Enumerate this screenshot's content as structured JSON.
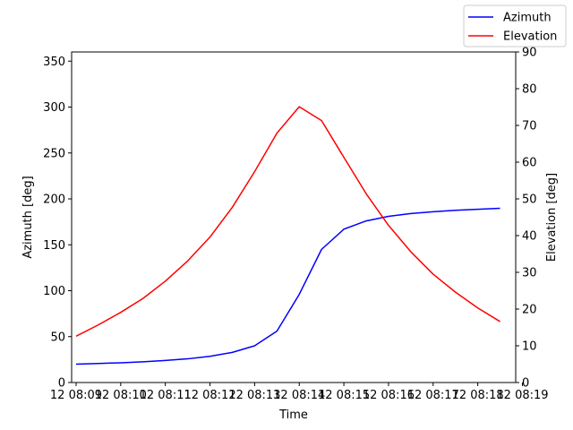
{
  "chart_data": {
    "type": "line",
    "xlabel": "Time",
    "ylabel_left": "Azimuth [deg]",
    "ylabel_right": "Elevation [deg]",
    "x_tick_labels": [
      "12 08:09",
      "12 08:10",
      "12 08:11",
      "12 08:12",
      "12 08:13",
      "12 08:14",
      "12 08:15",
      "12 08:16",
      "12 08:17",
      "12 08:18",
      "12 08:19"
    ],
    "x_range_minutes": [
      -0.1,
      9.85
    ],
    "x_minutes": [
      0,
      0.5,
      1,
      1.5,
      2,
      2.5,
      3,
      3.5,
      4,
      4.5,
      5,
      5.5,
      6,
      6.5,
      7,
      7.5,
      8,
      8.5,
      9,
      9.5
    ],
    "ylim_left": [
      0,
      360
    ],
    "yticks_left": [
      0,
      50,
      100,
      150,
      200,
      250,
      300,
      350
    ],
    "ylim_right": [
      0,
      90
    ],
    "yticks_right": [
      0,
      10,
      20,
      30,
      40,
      50,
      60,
      70,
      80,
      90
    ],
    "series": [
      {
        "name": "Azimuth",
        "axis": "left",
        "color": "#0000ff",
        "values": [
          20,
          20.7,
          21.5,
          22.6,
          24,
          25.8,
          28.5,
          32.8,
          40,
          56,
          96,
          145,
          167,
          176,
          181,
          184,
          186,
          187.5,
          188.7,
          189.8
        ]
      },
      {
        "name": "Elevation",
        "axis": "right",
        "color": "#ff0000",
        "values": [
          12.6,
          15.7,
          19.1,
          22.9,
          27.6,
          33.1,
          39.6,
          47.7,
          57.4,
          67.9,
          75.1,
          71.3,
          61.3,
          51.4,
          42.8,
          35.6,
          29.5,
          24.6,
          20.3,
          16.6
        ]
      }
    ],
    "legend_position": "top-right, outside above plot"
  }
}
